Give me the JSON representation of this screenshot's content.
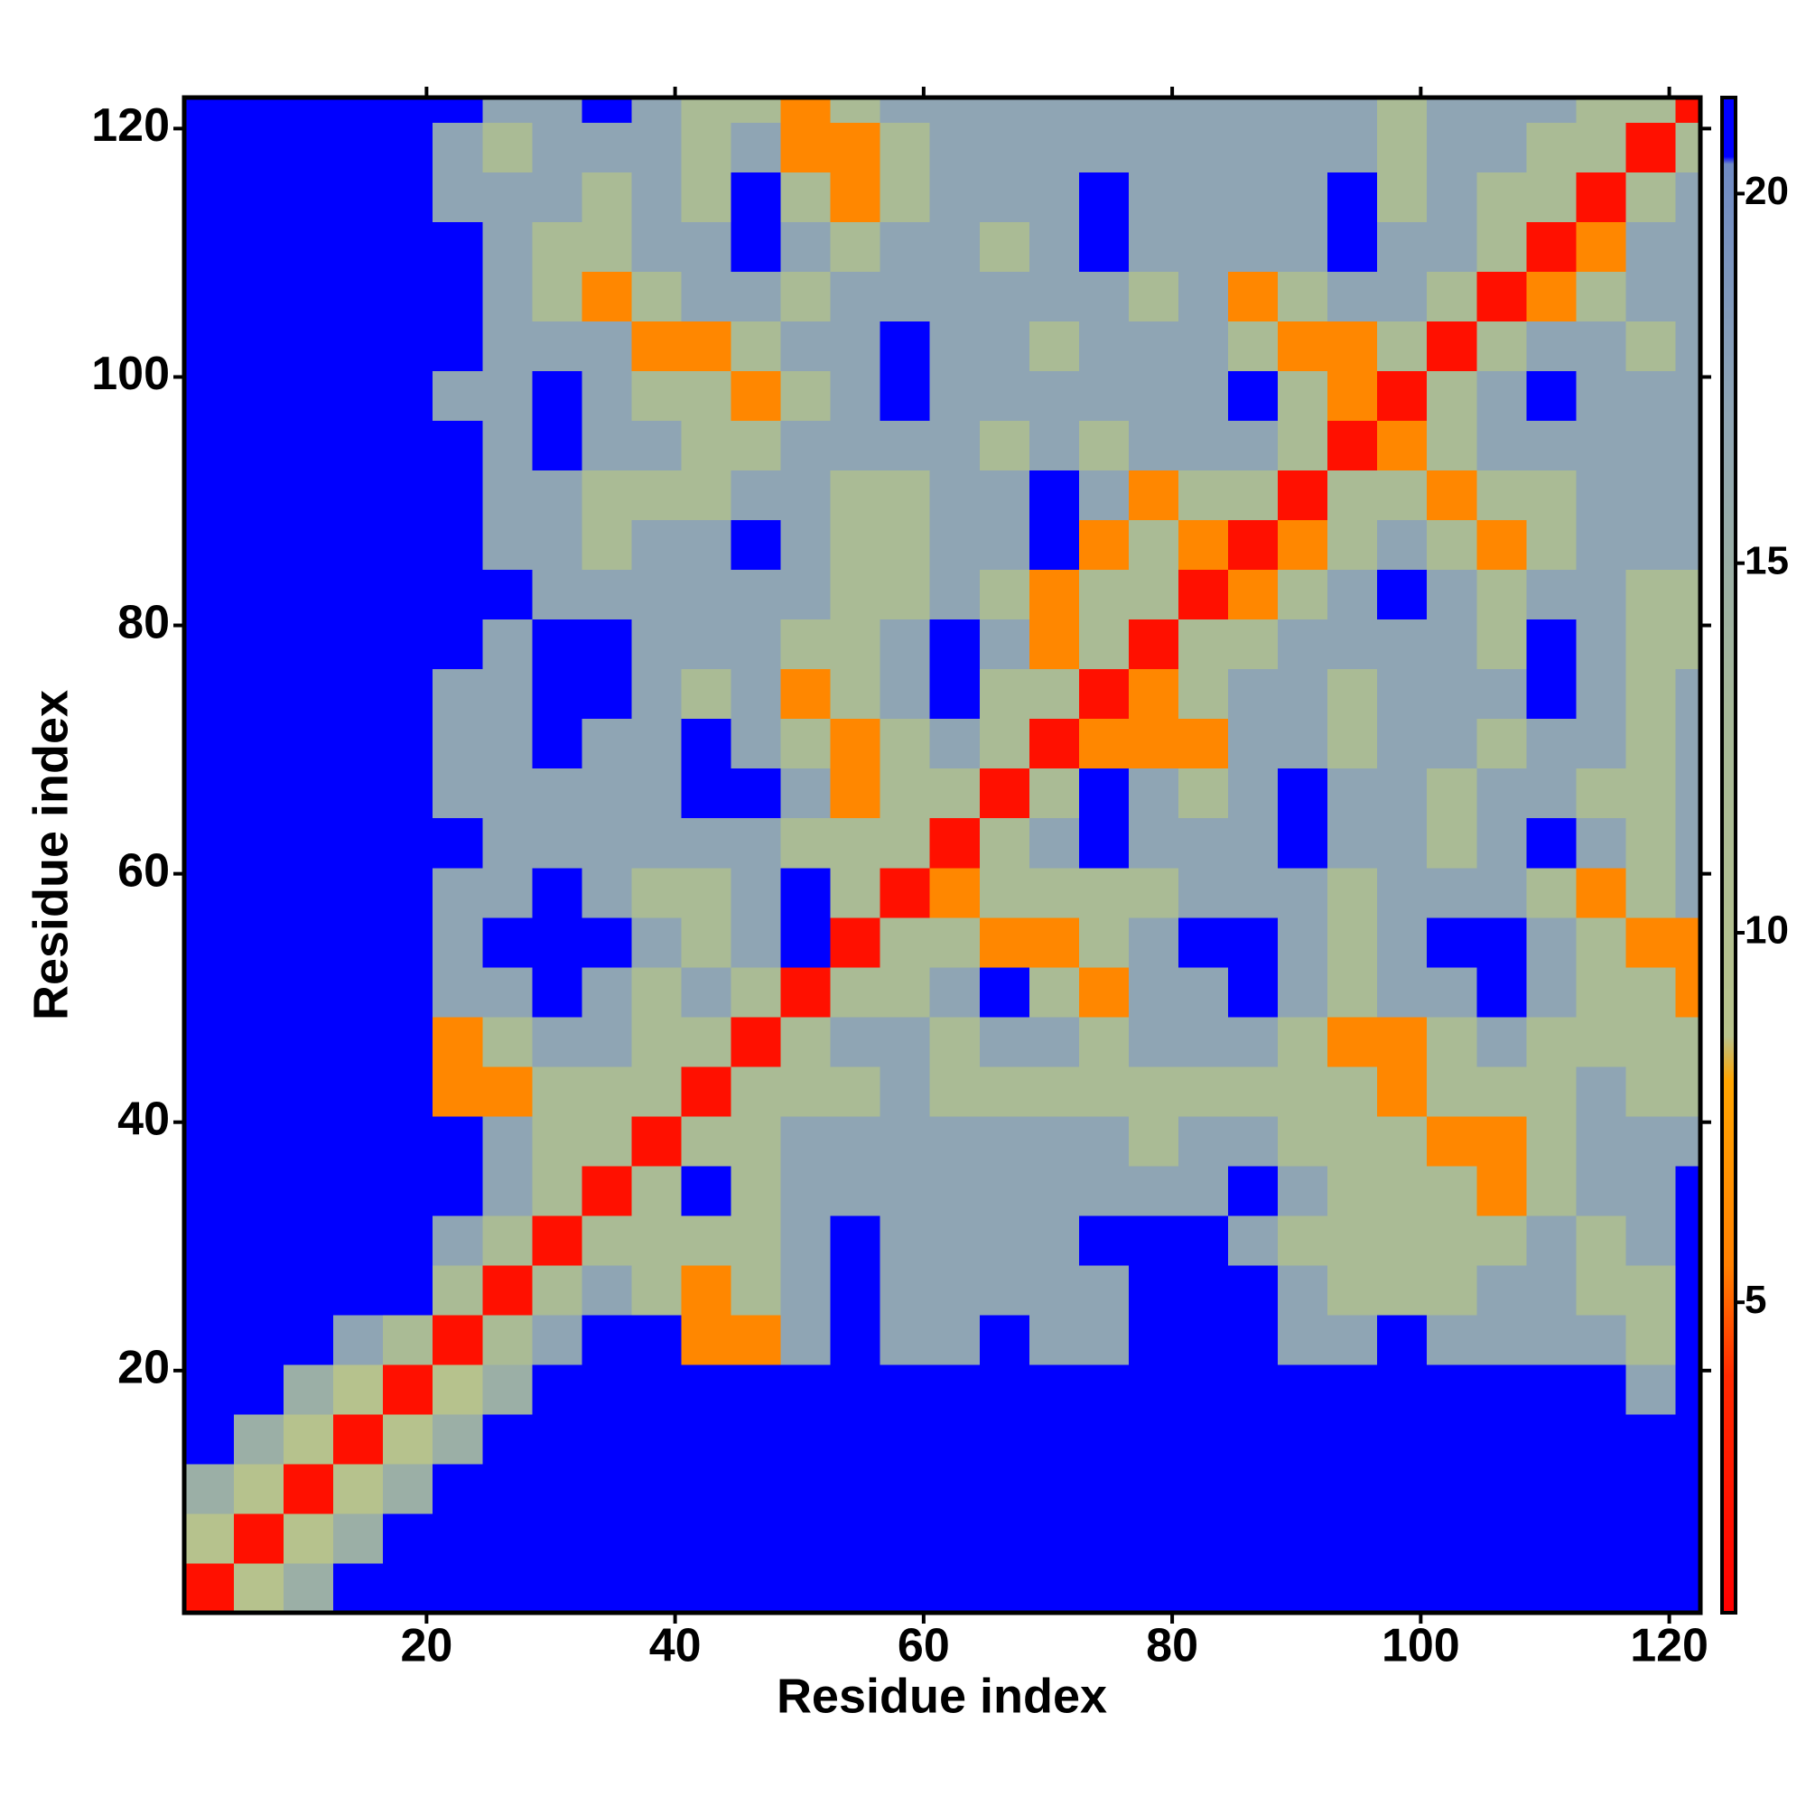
{
  "chart_data": {
    "type": "heatmap",
    "xlabel": "Residue index",
    "ylabel": "Residue index",
    "xlim": [
      0.5,
      122.5
    ],
    "ylim": [
      0.5,
      122.5
    ],
    "xticks": [
      20,
      40,
      60,
      80,
      100,
      120
    ],
    "yticks": [
      20,
      40,
      60,
      80,
      100,
      120
    ],
    "xbins": [
      0.5,
      4.5,
      8.5,
      12.5,
      16.5,
      20.5,
      24.5,
      28.5,
      32.5,
      36.5,
      40.5,
      44.5,
      48.5,
      52.5,
      56.5,
      60.5,
      64.5,
      68.5,
      72.5,
      76.5,
      80.5,
      84.5,
      88.5,
      92.5,
      96.5,
      100.5,
      104.5,
      108.5,
      112.5,
      116.5,
      120.5,
      122.5
    ],
    "ybins": [
      0.5,
      4.5,
      8.5,
      12.5,
      16.5,
      20.5,
      24.5,
      28.5,
      32.5,
      36.5,
      40.5,
      44.5,
      48.5,
      52.5,
      56.5,
      60.5,
      64.5,
      68.5,
      72.5,
      76.5,
      80.5,
      84.5,
      88.5,
      92.5,
      96.5,
      100.5,
      104.5,
      108.5,
      112.5,
      116.5,
      120.5,
      122.5
    ],
    "zlim": [
      0.8,
      21.3
    ],
    "zticks": [
      5,
      10,
      15,
      20
    ],
    "colorscale": [
      [
        0.8,
        "#ff0000"
      ],
      [
        4,
        "#ff2a00"
      ],
      [
        5.5,
        "#ff8000"
      ],
      [
        8,
        "#ffa500"
      ],
      [
        8.6,
        "#b8c38c"
      ],
      [
        13,
        "#a6b898"
      ],
      [
        17,
        "#8fa5b4"
      ],
      [
        20.4,
        "#6f8ac4"
      ],
      [
        20.5,
        "#0000ff"
      ],
      [
        21.3,
        "#0000ff"
      ]
    ],
    "z": [
      [
        2,
        9,
        15,
        21,
        21,
        21,
        21,
        21,
        21,
        21,
        21,
        21,
        21,
        21,
        21,
        21,
        21,
        21,
        21,
        21,
        21,
        21,
        21,
        21,
        21,
        21,
        21,
        21,
        21,
        21,
        21
      ],
      [
        9,
        2,
        9,
        15,
        21,
        21,
        21,
        21,
        21,
        21,
        21,
        21,
        21,
        21,
        21,
        21,
        21,
        21,
        21,
        21,
        21,
        21,
        21,
        21,
        21,
        21,
        21,
        21,
        21,
        21,
        21
      ],
      [
        15,
        9,
        2,
        9,
        15,
        21,
        21,
        21,
        21,
        21,
        21,
        21,
        21,
        21,
        21,
        21,
        21,
        21,
        21,
        21,
        21,
        21,
        21,
        21,
        21,
        21,
        21,
        21,
        21,
        21,
        21
      ],
      [
        21,
        15,
        9,
        2,
        9,
        15,
        21,
        21,
        21,
        21,
        21,
        21,
        21,
        21,
        21,
        21,
        21,
        21,
        21,
        21,
        21,
        21,
        21,
        21,
        21,
        21,
        21,
        21,
        21,
        21,
        21
      ],
      [
        21,
        21,
        15,
        9,
        2,
        9,
        15,
        21,
        21,
        21,
        21,
        21,
        21,
        21,
        21,
        21,
        21,
        21,
        21,
        21,
        21,
        21,
        21,
        21,
        21,
        21,
        21,
        21,
        21,
        17,
        21
      ],
      [
        21,
        21,
        21,
        17,
        12,
        2,
        12,
        17,
        21,
        21,
        6,
        6,
        17,
        21,
        17,
        17,
        21,
        17,
        17,
        21,
        21,
        21,
        17,
        17,
        21,
        17,
        17,
        17,
        17,
        12,
        21
      ],
      [
        21,
        21,
        21,
        21,
        21,
        12,
        2,
        12,
        17,
        12,
        6,
        12,
        17,
        21,
        17,
        17,
        17,
        17,
        17,
        21,
        21,
        21,
        17,
        12,
        12,
        12,
        17,
        17,
        12,
        12,
        21
      ],
      [
        21,
        21,
        21,
        21,
        21,
        17,
        12,
        2,
        12,
        12,
        12,
        12,
        17,
        21,
        17,
        17,
        17,
        17,
        21,
        21,
        21,
        17,
        12,
        12,
        12,
        12,
        12,
        17,
        12,
        17,
        21
      ],
      [
        21,
        21,
        21,
        21,
        21,
        21,
        17,
        12,
        2,
        12,
        21,
        12,
        17,
        17,
        17,
        17,
        17,
        17,
        17,
        17,
        17,
        21,
        17,
        12,
        12,
        12,
        6,
        12,
        17,
        17,
        21
      ],
      [
        21,
        21,
        21,
        21,
        21,
        21,
        17,
        12,
        12,
        2,
        12,
        12,
        17,
        17,
        17,
        17,
        17,
        17,
        17,
        12,
        17,
        17,
        12,
        12,
        12,
        6,
        6,
        12,
        17,
        17,
        17
      ],
      [
        21,
        21,
        21,
        21,
        21,
        6,
        6,
        12,
        12,
        12,
        2,
        12,
        12,
        12,
        17,
        12,
        12,
        12,
        12,
        12,
        12,
        12,
        12,
        12,
        6,
        12,
        12,
        12,
        17,
        12,
        12
      ],
      [
        21,
        21,
        21,
        21,
        21,
        6,
        12,
        17,
        17,
        12,
        12,
        2,
        12,
        17,
        17,
        12,
        17,
        17,
        12,
        17,
        17,
        17,
        12,
        6,
        6,
        12,
        17,
        12,
        12,
        12,
        12
      ],
      [
        21,
        21,
        21,
        21,
        21,
        17,
        17,
        21,
        17,
        12,
        17,
        12,
        2,
        12,
        12,
        17,
        21,
        12,
        6,
        17,
        17,
        21,
        17,
        12,
        17,
        17,
        21,
        17,
        12,
        12,
        6
      ],
      [
        21,
        21,
        21,
        21,
        21,
        17,
        21,
        21,
        21,
        17,
        12,
        17,
        21,
        2,
        12,
        12,
        6,
        6,
        12,
        17,
        21,
        21,
        17,
        12,
        17,
        21,
        21,
        17,
        12,
        6,
        6
      ],
      [
        21,
        21,
        21,
        21,
        21,
        17,
        17,
        21,
        17,
        12,
        12,
        17,
        21,
        12,
        2,
        6,
        12,
        12,
        12,
        12,
        17,
        17,
        17,
        12,
        17,
        17,
        17,
        12,
        6,
        12,
        17
      ],
      [
        21,
        21,
        21,
        21,
        21,
        21,
        17,
        17,
        17,
        17,
        17,
        17,
        12,
        12,
        12,
        2,
        12,
        17,
        21,
        17,
        17,
        17,
        21,
        17,
        17,
        12,
        17,
        21,
        17,
        12,
        17
      ],
      [
        21,
        21,
        21,
        21,
        21,
        17,
        17,
        17,
        17,
        17,
        21,
        21,
        17,
        6,
        12,
        12,
        2,
        12,
        21,
        17,
        12,
        17,
        21,
        17,
        17,
        12,
        17,
        17,
        12,
        12,
        17
      ],
      [
        21,
        21,
        21,
        21,
        21,
        17,
        17,
        21,
        17,
        17,
        21,
        17,
        12,
        6,
        12,
        17,
        12,
        2,
        6,
        6,
        6,
        17,
        17,
        12,
        17,
        17,
        12,
        17,
        17,
        12,
        17
      ],
      [
        21,
        21,
        21,
        21,
        21,
        17,
        17,
        21,
        21,
        17,
        12,
        17,
        6,
        12,
        17,
        21,
        12,
        12,
        2,
        6,
        12,
        17,
        17,
        12,
        17,
        17,
        17,
        21,
        17,
        12,
        17
      ],
      [
        21,
        21,
        21,
        21,
        21,
        21,
        17,
        21,
        21,
        17,
        17,
        17,
        12,
        12,
        17,
        21,
        17,
        6,
        12,
        2,
        12,
        12,
        17,
        17,
        17,
        17,
        12,
        21,
        17,
        12,
        12
      ],
      [
        21,
        21,
        21,
        21,
        21,
        21,
        21,
        17,
        17,
        17,
        17,
        17,
        17,
        12,
        12,
        17,
        12,
        6,
        12,
        12,
        2,
        6,
        12,
        17,
        21,
        17,
        12,
        17,
        17,
        12,
        12
      ],
      [
        21,
        21,
        21,
        21,
        21,
        21,
        17,
        17,
        12,
        17,
        17,
        21,
        17,
        12,
        12,
        17,
        17,
        21,
        6,
        12,
        6,
        2,
        6,
        12,
        17,
        12,
        6,
        12,
        17,
        17,
        17
      ],
      [
        21,
        21,
        21,
        21,
        21,
        21,
        17,
        17,
        12,
        12,
        12,
        17,
        17,
        12,
        12,
        17,
        17,
        21,
        17,
        6,
        12,
        12,
        2,
        12,
        12,
        6,
        12,
        12,
        17,
        17,
        17
      ],
      [
        21,
        21,
        21,
        21,
        21,
        21,
        17,
        21,
        17,
        17,
        12,
        12,
        17,
        17,
        17,
        17,
        12,
        17,
        12,
        17,
        17,
        17,
        12,
        2,
        6,
        12,
        17,
        17,
        17,
        17,
        17
      ],
      [
        21,
        21,
        21,
        21,
        21,
        17,
        17,
        21,
        17,
        12,
        12,
        6,
        12,
        17,
        21,
        17,
        17,
        17,
        17,
        17,
        17,
        21,
        12,
        6,
        2,
        12,
        17,
        21,
        17,
        17,
        17
      ],
      [
        21,
        21,
        21,
        21,
        21,
        21,
        17,
        17,
        17,
        6,
        6,
        12,
        17,
        17,
        21,
        17,
        17,
        12,
        17,
        17,
        17,
        12,
        6,
        6,
        12,
        2,
        12,
        17,
        17,
        12,
        17
      ],
      [
        21,
        21,
        21,
        21,
        21,
        21,
        17,
        12,
        6,
        12,
        17,
        17,
        12,
        17,
        17,
        17,
        17,
        17,
        17,
        12,
        17,
        6,
        12,
        17,
        17,
        12,
        2,
        6,
        12,
        17,
        17
      ],
      [
        21,
        21,
        21,
        21,
        21,
        21,
        17,
        12,
        12,
        17,
        17,
        21,
        17,
        12,
        17,
        17,
        12,
        17,
        21,
        17,
        17,
        17,
        17,
        21,
        17,
        17,
        12,
        2,
        6,
        17,
        17
      ],
      [
        21,
        21,
        21,
        21,
        21,
        17,
        17,
        17,
        12,
        17,
        12,
        21,
        12,
        6,
        12,
        17,
        17,
        17,
        21,
        17,
        17,
        17,
        17,
        21,
        12,
        17,
        12,
        12,
        2,
        12,
        17
      ],
      [
        21,
        21,
        21,
        21,
        21,
        17,
        12,
        17,
        17,
        17,
        12,
        17,
        6,
        6,
        12,
        17,
        17,
        17,
        17,
        17,
        17,
        17,
        17,
        17,
        12,
        17,
        17,
        12,
        12,
        2,
        12
      ],
      [
        21,
        21,
        21,
        21,
        21,
        21,
        17,
        17,
        21,
        17,
        12,
        12,
        6,
        12,
        17,
        17,
        17,
        17,
        17,
        17,
        17,
        17,
        17,
        17,
        12,
        17,
        17,
        17,
        12,
        12,
        2
      ]
    ]
  }
}
